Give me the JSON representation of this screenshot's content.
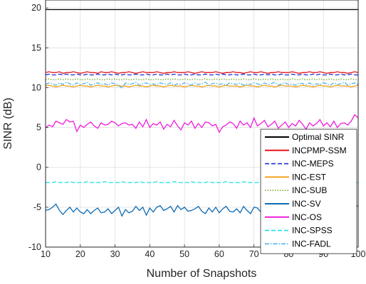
{
  "chart_data": {
    "type": "line",
    "xlabel": "Number of Snapshots",
    "ylabel": "SINR (dB)",
    "xlim": [
      10,
      100
    ],
    "ylim": [
      -10,
      21
    ],
    "xticks": [
      10,
      20,
      30,
      40,
      50,
      60,
      70,
      80,
      90,
      100
    ],
    "yticks": [
      -10,
      -5,
      0,
      5,
      10,
      15,
      20
    ],
    "grid": true,
    "legend_position": "bottom-right",
    "x": [
      10,
      11,
      12,
      13,
      14,
      15,
      16,
      17,
      18,
      19,
      20,
      21,
      22,
      23,
      24,
      25,
      26,
      27,
      28,
      29,
      30,
      31,
      32,
      33,
      34,
      35,
      36,
      37,
      38,
      39,
      40,
      41,
      42,
      43,
      44,
      45,
      46,
      47,
      48,
      49,
      50,
      51,
      52,
      53,
      54,
      55,
      56,
      57,
      58,
      59,
      60,
      61,
      62,
      63,
      64,
      65,
      66,
      67,
      68,
      69,
      70,
      71,
      72,
      73,
      74,
      75,
      76,
      77,
      78,
      79,
      80,
      81,
      82,
      83,
      84,
      85,
      86,
      87,
      88,
      89,
      90,
      91,
      92,
      93,
      94,
      95,
      96,
      97,
      98,
      99,
      100
    ],
    "series": [
      {
        "name": "Optimal SINR",
        "color": "#000000",
        "dash": "solid",
        "values": [
          19.8,
          19.8,
          19.8,
          19.8,
          19.8,
          19.8,
          19.8,
          19.8,
          19.8,
          19.8,
          19.8,
          19.8,
          19.8,
          19.8,
          19.8,
          19.8,
          19.8,
          19.8,
          19.8,
          19.8,
          19.8,
          19.8,
          19.8,
          19.8,
          19.8,
          19.8,
          19.8,
          19.8,
          19.8,
          19.8,
          19.8,
          19.8,
          19.8,
          19.8,
          19.8,
          19.8,
          19.8,
          19.8,
          19.8,
          19.8,
          19.8,
          19.8,
          19.8,
          19.8,
          19.8,
          19.8,
          19.8,
          19.8,
          19.8,
          19.8,
          19.8,
          19.8,
          19.8,
          19.8,
          19.8,
          19.8,
          19.8,
          19.8,
          19.8,
          19.8,
          19.8,
          19.8,
          19.8,
          19.8,
          19.8,
          19.8,
          19.8,
          19.8,
          19.8,
          19.8,
          19.8,
          19.8,
          19.8,
          19.8,
          19.8,
          19.8,
          19.8,
          19.8,
          19.8,
          19.8,
          19.8,
          19.8,
          19.8,
          19.8,
          19.8,
          19.8,
          19.8,
          19.8,
          19.8,
          19.8,
          19.8
        ]
      },
      {
        "name": "INCPMP-SSM",
        "color": "#e8131b",
        "dash": "solid",
        "values": [
          11.9,
          12.0,
          11.9,
          11.9,
          12.0,
          11.8,
          11.9,
          11.9,
          12.0,
          11.9,
          11.8,
          11.9,
          12.0,
          11.9,
          11.9,
          11.8,
          12.0,
          11.9,
          11.9,
          12.0,
          11.9,
          11.8,
          11.9,
          11.9,
          12.0,
          11.9,
          11.8,
          11.9,
          12.0,
          11.9,
          11.9,
          11.9,
          12.0,
          11.9,
          11.8,
          11.9,
          11.9,
          12.0,
          11.9,
          11.9,
          11.9,
          12.0,
          11.9,
          11.8,
          11.9,
          12.0,
          11.9,
          11.9,
          11.9,
          12.0,
          11.9,
          11.8,
          11.9,
          11.9,
          12.0,
          11.9,
          11.9,
          11.8,
          11.9,
          12.0,
          11.9,
          11.9,
          12.0,
          11.9,
          11.8,
          11.9,
          11.9,
          12.0,
          11.9,
          11.9,
          11.9,
          12.0,
          11.9,
          11.8,
          11.9,
          11.9,
          12.0,
          11.9,
          11.9,
          12.0,
          11.9,
          11.8,
          11.9,
          11.9,
          12.0,
          11.9,
          11.9,
          11.8,
          11.9,
          12.0,
          11.9
        ]
      },
      {
        "name": "INC-MEPS",
        "color": "#1a2fd4",
        "dash": "dashed",
        "values": [
          11.6,
          11.7,
          11.6,
          11.6,
          11.7,
          11.6,
          11.7,
          11.6,
          11.6,
          11.7,
          11.6,
          11.6,
          11.7,
          11.6,
          11.6,
          11.7,
          11.6,
          11.6,
          11.7,
          11.6,
          11.7,
          11.6,
          11.6,
          11.7,
          11.6,
          11.6,
          11.7,
          11.6,
          11.6,
          11.7,
          11.6,
          11.6,
          11.7,
          11.6,
          11.6,
          11.7,
          11.6,
          11.7,
          11.6,
          11.6,
          11.7,
          11.6,
          11.6,
          11.7,
          11.6,
          11.6,
          11.7,
          11.6,
          11.6,
          11.7,
          11.6,
          11.7,
          11.6,
          11.6,
          11.7,
          11.6,
          11.6,
          11.7,
          11.6,
          11.6,
          11.7,
          11.6,
          11.6,
          11.7,
          11.6,
          11.7,
          11.6,
          11.6,
          11.7,
          11.6,
          11.6,
          11.7,
          11.6,
          11.6,
          11.7,
          11.6,
          11.6,
          11.7,
          11.6,
          11.7,
          11.6,
          11.6,
          11.7,
          11.6,
          11.6,
          11.7,
          11.6,
          11.6,
          11.7,
          11.6,
          11.6
        ]
      },
      {
        "name": "INC-EST",
        "color": "#f0a21c",
        "dash": "solid",
        "values": [
          10.2,
          10.3,
          10.2,
          10.1,
          10.2,
          10.3,
          10.2,
          10.2,
          10.1,
          10.2,
          10.3,
          10.2,
          10.2,
          10.1,
          10.2,
          10.3,
          10.2,
          10.2,
          10.1,
          10.2,
          10.3,
          10.2,
          10.2,
          10.2,
          10.1,
          10.2,
          10.3,
          10.2,
          10.2,
          10.1,
          10.2,
          10.3,
          10.2,
          10.2,
          10.1,
          10.2,
          10.3,
          10.2,
          10.2,
          10.2,
          10.1,
          10.2,
          10.3,
          10.2,
          10.2,
          10.1,
          10.2,
          10.3,
          10.2,
          10.2,
          10.1,
          10.2,
          10.3,
          10.2,
          10.2,
          10.2,
          10.1,
          10.2,
          10.3,
          10.2,
          10.2,
          10.1,
          10.2,
          10.3,
          10.2,
          10.2,
          10.1,
          10.2,
          10.3,
          10.2,
          10.2,
          10.2,
          10.1,
          10.2,
          10.3,
          10.2,
          10.2,
          10.1,
          10.2,
          10.3,
          10.2,
          10.2,
          10.1,
          10.2,
          10.3,
          10.2,
          10.2,
          10.2,
          10.1,
          10.2,
          10.3
        ]
      },
      {
        "name": "INC-SV",
        "color": "#0f6bb3",
        "dash": "solid",
        "values": [
          -5.4,
          -5.3,
          -5.0,
          -4.6,
          -5.4,
          -5.9,
          -5.4,
          -5.0,
          -5.6,
          -5.1,
          -5.6,
          -5.8,
          -5.3,
          -5.8,
          -5.4,
          -5.1,
          -5.7,
          -5.6,
          -5.2,
          -5.8,
          -5.4,
          -5.0,
          -6.1,
          -5.3,
          -5.7,
          -5.5,
          -4.9,
          -5.4,
          -5.0,
          -6.0,
          -5.1,
          -5.6,
          -5.0,
          -4.8,
          -5.4,
          -5.2,
          -4.9,
          -5.6,
          -4.8,
          -5.3,
          -5.0,
          -5.5,
          -5.4,
          -5.2,
          -4.9,
          -5.5,
          -5.8,
          -5.1,
          -5.6,
          -5.0,
          -5.7,
          -5.2,
          -4.9,
          -5.5,
          -5.6,
          -5.2,
          -5.7,
          -4.9,
          -5.4,
          -5.8,
          -5.0,
          -5.1,
          -5.6,
          -5.4,
          -4.9,
          -5.6,
          -5.2,
          -5.5,
          -5.0,
          -5.4,
          -5.1,
          -5.8,
          -5.4,
          -5.6,
          -5.0,
          -5.5,
          -5.2,
          -5.9,
          -5.1,
          -5.5,
          -5.2,
          -5.8,
          -5.0,
          -5.4,
          -5.6,
          -5.1,
          -5.7,
          -5.3,
          -5.5,
          -5.0,
          -4.8
        ]
      },
      {
        "name": "INC-OS",
        "color": "#f11bdc",
        "dash": "solid",
        "values": [
          5.0,
          5.3,
          5.1,
          5.8,
          5.6,
          5.4,
          6.0,
          5.7,
          5.8,
          4.5,
          5.3,
          5.0,
          5.4,
          5.7,
          5.2,
          4.9,
          5.6,
          5.3,
          5.4,
          5.8,
          5.6,
          5.2,
          5.5,
          5.6,
          5.3,
          5.4,
          4.9,
          5.7,
          5.1,
          6.0,
          5.0,
          5.5,
          5.3,
          5.7,
          4.8,
          5.4,
          5.1,
          5.9,
          5.2,
          4.7,
          5.6,
          5.3,
          5.8,
          4.9,
          5.5,
          5.0,
          5.7,
          5.6,
          5.2,
          5.4,
          4.4,
          5.1,
          5.3,
          5.7,
          5.5,
          4.9,
          5.8,
          5.3,
          5.6,
          5.0,
          6.2,
          5.2,
          5.5,
          5.9,
          5.1,
          5.4,
          5.8,
          4.9,
          5.3,
          5.7,
          5.0,
          5.5,
          5.2,
          5.9,
          5.4,
          4.8,
          5.6,
          5.2,
          5.5,
          6.0,
          5.2,
          5.6,
          5.1,
          5.8,
          5.0,
          5.5,
          5.6,
          5.3,
          5.8,
          6.6,
          6.2
        ]
      },
      {
        "name": "INC-SPSS",
        "color": "#19e0e8",
        "dash": "dashed",
        "values": [
          -1.9,
          -1.9,
          -1.9,
          -1.8,
          -1.9,
          -1.9,
          -1.9,
          -1.8,
          -1.9,
          -1.9,
          -1.9,
          -1.9,
          -1.8,
          -1.9,
          -1.9,
          -1.9,
          -1.9,
          -1.8,
          -1.9,
          -1.9,
          -1.9,
          -1.9,
          -1.8,
          -1.9,
          -1.9,
          -1.9,
          -1.9,
          -1.8,
          -1.9,
          -1.9,
          -1.9,
          -1.9,
          -1.8,
          -1.9,
          -1.9,
          -1.9,
          -1.9,
          -1.8,
          -1.9,
          -1.9,
          -1.9,
          -1.9,
          -1.8,
          -1.9,
          -1.9,
          -1.9,
          -1.9,
          -1.8,
          -1.9,
          -1.9,
          -1.9,
          -1.9,
          -1.8,
          -1.9,
          -1.9,
          -1.9,
          -1.9,
          -1.8,
          -1.9,
          -1.9,
          -1.9,
          -1.9,
          -1.8,
          -1.9,
          -1.9,
          -1.9,
          -1.9,
          -1.8,
          -1.9,
          -1.9,
          -1.9,
          -1.9,
          -1.8,
          -1.9,
          -1.9,
          -1.9,
          -1.9,
          -1.8,
          -1.9,
          -1.9,
          -1.9,
          -1.9,
          -1.8,
          -1.9,
          -1.9,
          -1.9,
          -1.9,
          -1.8,
          -1.9,
          -1.9,
          -1.9
        ]
      },
      {
        "name": "INC-FADL",
        "color": "#4cb4e8",
        "dash": "dashdot",
        "values": [
          10.4,
          10.6,
          10.5,
          10.3,
          10.6,
          10.4,
          10.7,
          10.5,
          10.3,
          10.6,
          10.4,
          10.5,
          10.7,
          10.3,
          10.5,
          10.6,
          10.4,
          10.5,
          10.3,
          10.6,
          10.5,
          10.4,
          9.9,
          10.6,
          10.4,
          10.5,
          10.7,
          10.3,
          10.5,
          10.6,
          10.4,
          10.5,
          10.3,
          10.6,
          10.5,
          10.4,
          10.6,
          10.3,
          10.5,
          10.4,
          10.6,
          10.5,
          10.3,
          10.6,
          10.4,
          10.5,
          10.7,
          10.3,
          10.5,
          10.6,
          10.4,
          10.5,
          10.3,
          10.6,
          10.5,
          10.4,
          10.6,
          10.3,
          10.5,
          10.4,
          10.6,
          10.5,
          10.3,
          10.6,
          10.4,
          10.5,
          10.7,
          10.3,
          10.5,
          10.6,
          10.4,
          10.5,
          10.3,
          10.6,
          10.5,
          10.4,
          10.6,
          10.3,
          10.5,
          10.4,
          10.6,
          10.5,
          10.3,
          10.6,
          10.4,
          10.5,
          10.7,
          10.3,
          10.5,
          10.6,
          10.4
        ]
      },
      {
        "name": "INC-SUB",
        "color": "#77ac30",
        "dash": "dotted",
        "values": [
          11.0,
          11.1,
          11.0,
          11.0,
          11.1,
          11.0,
          11.1,
          11.0,
          11.0,
          11.1,
          11.0,
          11.0,
          11.1,
          11.0,
          11.0,
          11.1,
          11.0,
          11.0,
          11.1,
          11.0,
          11.1,
          11.0,
          11.0,
          11.1,
          11.0,
          11.0,
          11.1,
          11.0,
          11.0,
          11.1,
          11.0,
          11.0,
          11.1,
          11.0,
          11.0,
          11.1,
          11.0,
          11.1,
          11.0,
          11.0,
          11.1,
          11.0,
          11.0,
          11.1,
          11.0,
          11.0,
          11.1,
          11.0,
          11.0,
          11.1,
          11.0,
          11.1,
          11.0,
          11.0,
          11.1,
          11.0,
          11.0,
          11.1,
          11.0,
          11.0,
          11.1,
          11.0,
          11.0,
          11.1,
          11.0,
          11.1,
          11.0,
          11.0,
          11.1,
          11.0,
          11.0,
          11.1,
          11.0,
          11.0,
          11.1,
          11.0,
          11.0,
          11.1,
          11.0,
          11.1,
          11.0,
          11.0,
          11.1,
          11.0,
          11.0,
          11.1,
          11.0,
          11.0,
          11.1,
          11.0,
          11.0
        ]
      }
    ],
    "legend_order": [
      "Optimal SINR",
      "INCPMP-SSM",
      "INC-MEPS",
      "INC-EST",
      "INC-SUB",
      "INC-SV",
      "INC-OS",
      "INC-SPSS",
      "INC-FADL"
    ]
  }
}
